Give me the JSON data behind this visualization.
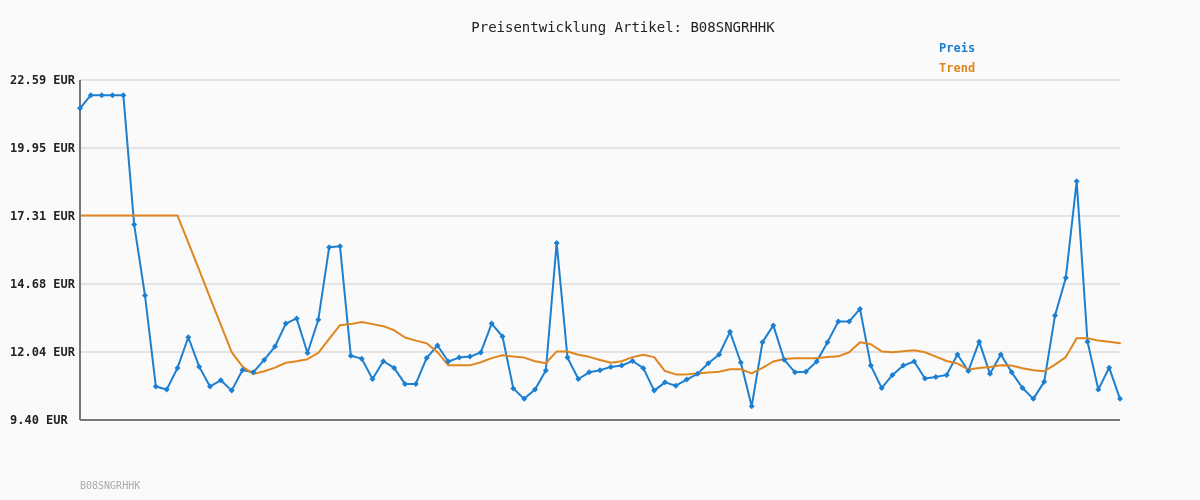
{
  "chart_data": {
    "type": "line",
    "title": "Preisentwicklung Artikel: B08SNGRHHK",
    "categories": [
      null,
      null,
      null,
      null,
      null,
      null,
      null,
      null,
      null,
      null,
      null,
      null,
      null,
      null,
      null,
      null,
      null,
      null,
      null,
      null,
      null,
      null,
      null,
      null,
      null,
      null,
      null,
      null,
      null,
      null,
      null,
      null,
      null,
      null,
      null,
      null,
      null,
      null,
      null,
      null,
      null,
      null,
      null,
      null,
      null,
      null,
      null,
      null,
      null,
      null,
      null,
      null,
      null,
      null,
      null,
      null,
      null,
      null,
      null,
      null,
      null,
      null,
      null,
      null,
      null,
      null,
      null,
      null,
      null,
      null,
      null,
      null,
      null,
      null,
      null,
      null,
      null,
      null,
      null,
      null,
      null,
      null,
      null,
      null,
      null,
      null,
      null,
      null,
      null,
      null,
      null,
      null,
      null,
      null,
      null,
      null,
      null
    ],
    "series": [
      {
        "name": "Preis",
        "color": "#1c7fd0",
        "values": [
          21.49,
          22.0,
          22.0,
          22.0,
          22.0,
          16.98,
          14.23,
          10.7,
          10.58,
          11.42,
          12.61,
          11.47,
          10.7,
          10.94,
          10.54,
          11.34,
          11.25,
          11.73,
          12.25,
          13.14,
          13.34,
          12.0,
          13.29,
          16.1,
          16.14,
          11.89,
          11.78,
          10.99,
          11.68,
          11.42,
          10.8,
          10.8,
          11.81,
          12.29,
          11.67,
          11.82,
          11.86,
          12.02,
          13.14,
          12.64,
          10.62,
          10.22,
          10.58,
          11.32,
          16.27,
          11.82,
          10.99,
          11.25,
          11.33,
          11.46,
          11.51,
          11.69,
          11.41,
          10.54,
          10.86,
          10.73,
          10.97,
          11.19,
          11.6,
          11.94,
          12.82,
          11.63,
          9.93,
          12.42,
          13.07,
          11.74,
          11.25,
          11.27,
          11.67,
          12.42,
          13.22,
          13.22,
          13.71,
          11.51,
          10.64,
          11.15,
          11.51,
          11.67,
          11.01,
          11.07,
          11.15,
          11.94,
          11.3,
          12.44,
          11.19,
          11.94,
          11.25,
          10.64,
          10.22,
          10.88,
          13.45,
          14.92,
          18.66,
          12.44,
          10.58,
          11.43,
          10.22
        ]
      },
      {
        "name": "Trend",
        "color": "#e0861e",
        "marker": "none",
        "values": [
          17.33,
          17.33,
          17.33,
          17.33,
          17.33,
          17.33,
          17.33,
          17.33,
          17.33,
          17.33,
          16.28,
          15.22,
          14.15,
          13.09,
          12.03,
          11.47,
          11.19,
          11.29,
          11.43,
          11.62,
          11.68,
          11.76,
          12.0,
          12.55,
          13.08,
          13.12,
          13.2,
          13.12,
          13.04,
          12.88,
          12.6,
          12.48,
          12.38,
          12.03,
          11.52,
          11.52,
          11.52,
          11.64,
          11.8,
          11.91,
          11.86,
          11.82,
          11.68,
          11.6,
          12.06,
          12.06,
          11.93,
          11.85,
          11.73,
          11.62,
          11.68,
          11.84,
          11.93,
          11.84,
          11.3,
          11.17,
          11.17,
          11.2,
          11.24,
          11.27,
          11.37,
          11.37,
          11.21,
          11.42,
          11.67,
          11.77,
          11.8,
          11.8,
          11.8,
          11.84,
          11.87,
          12.03,
          12.42,
          12.34,
          12.06,
          12.03,
          12.07,
          12.11,
          12.03,
          11.86,
          11.69,
          11.59,
          11.36,
          11.42,
          11.46,
          11.52,
          11.51,
          11.41,
          11.33,
          11.29,
          11.55,
          11.84,
          12.57,
          12.57,
          12.48,
          12.44,
          12.38
        ]
      }
    ],
    "ylim": [
      9.4,
      22.59
    ],
    "yticks": [
      {
        "value": 9.4,
        "label": "9.40 EUR"
      },
      {
        "value": 12.04,
        "label": "12.04 EUR"
      },
      {
        "value": 14.68,
        "label": "14.68 EUR"
      },
      {
        "value": 17.31,
        "label": "17.31 EUR"
      },
      {
        "value": 19.95,
        "label": "19.95 EUR"
      },
      {
        "value": 22.59,
        "label": "22.59 EUR"
      }
    ],
    "grid": "y",
    "legend": "top right",
    "tick_labels": "y",
    "marker": "diamond",
    "annotations": [
      "B08SNGRHHK"
    ]
  }
}
